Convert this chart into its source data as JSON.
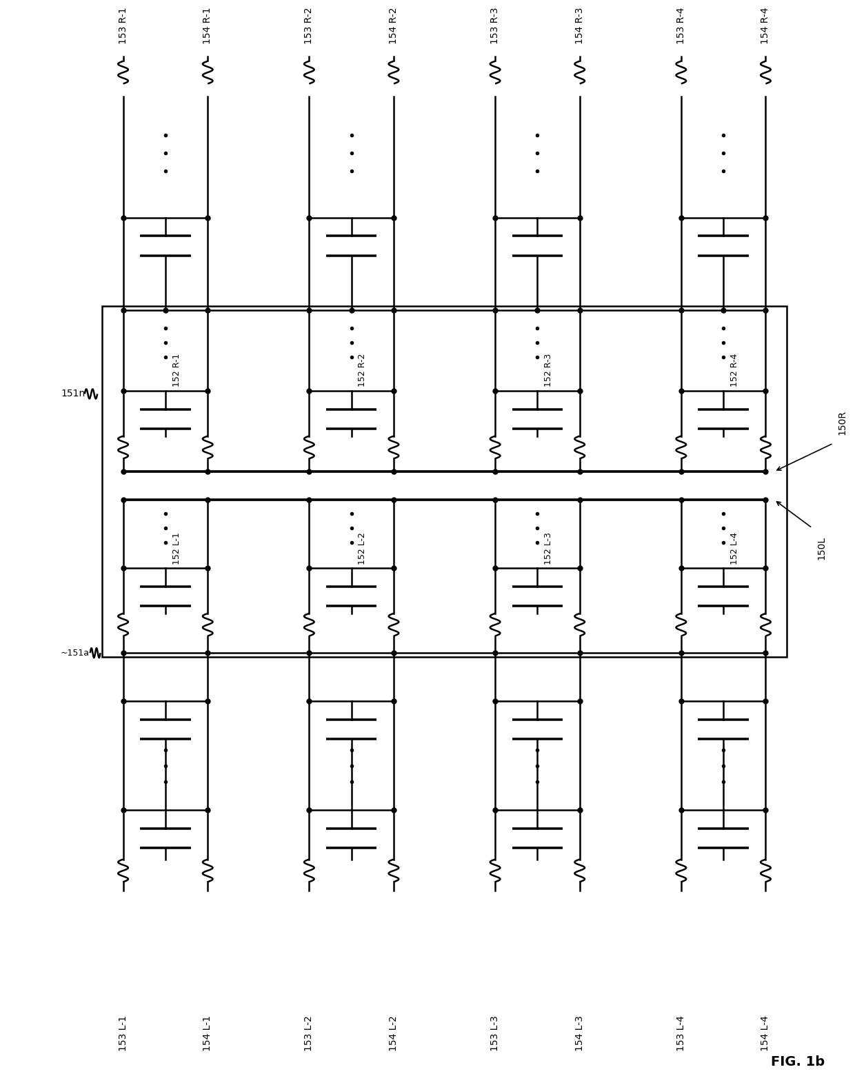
{
  "fig_label": "FIG. 1b",
  "bg_color": "#ffffff",
  "line_color": "#000000",
  "lw": 1.8,
  "col_labels_top": [
    "153 R-1",
    "154 R-1",
    "153 R-2",
    "154 R-2",
    "153 R-3",
    "154 R-3",
    "153 R-4",
    "154 R-4"
  ],
  "col_labels_bot": [
    "153 L-1",
    "154 L-1",
    "153 L-2",
    "154 L-2",
    "153 L-3",
    "154 L-3",
    "153 L-4",
    "154 L-4"
  ],
  "row_R_labels": [
    "152 R-1",
    "152 R-2",
    "152 R-3",
    "152 R-4"
  ],
  "row_L_labels": [
    "152 L-1",
    "152 L-2",
    "152 L-3",
    "152 L-4"
  ],
  "label_151n": "151n",
  "label_151a": "~151a",
  "label_150L": "150L",
  "label_150R": "150R"
}
